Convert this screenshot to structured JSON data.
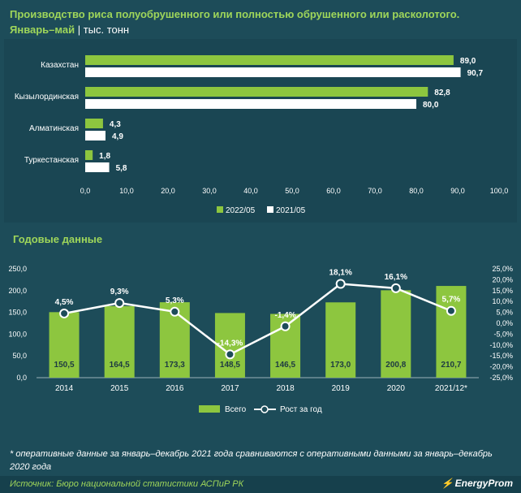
{
  "title": {
    "line1": "Производство риса полуобрушенного или полностью обрушенного или расколотого.",
    "line2": "Январь–май",
    "sep": " | ",
    "unit": "тыс. тонн"
  },
  "section2_title": "Годовые данные",
  "footnote": "* оперативные данные за январь–декабрь 2021 года сравниваются с оперативными данными за январь–декабрь 2020 года",
  "source": "Источник: Бюро национальной статистики АСПиР РК",
  "logo": "EnergyProm",
  "colors": {
    "green": "#8dc63f",
    "white": "#ffffff",
    "text": "#ffffff",
    "title": "#9fd65a"
  },
  "chart_data": [
    {
      "type": "bar",
      "orientation": "horizontal",
      "categories": [
        "Казахстан",
        "Кызылординская",
        "Алматинская",
        "Туркестанская"
      ],
      "series": [
        {
          "name": "2022/05",
          "values": [
            89.0,
            82.8,
            4.3,
            1.8
          ],
          "labels": [
            "89,0",
            "82,8",
            "4,3",
            "1,8"
          ],
          "color": "#8dc63f"
        },
        {
          "name": "2021/05",
          "values": [
            90.7,
            80.0,
            4.9,
            5.8
          ],
          "labels": [
            "90,7",
            "80,0",
            "4,9",
            "5,8"
          ],
          "color": "#ffffff"
        }
      ],
      "xlim": [
        0,
        100
      ],
      "xticks": [
        "0,0",
        "10,0",
        "20,0",
        "30,0",
        "40,0",
        "50,0",
        "60,0",
        "70,0",
        "80,0",
        "90,0",
        "100,0"
      ],
      "legend": "bottom"
    },
    {
      "type": "bar+line",
      "categories": [
        "2014",
        "2015",
        "2016",
        "2017",
        "2018",
        "2019",
        "2020",
        "2021/12*"
      ],
      "series": [
        {
          "name": "Всего",
          "type": "bar",
          "axis": "left",
          "values": [
            150.5,
            164.5,
            173.3,
            148.5,
            146.5,
            173.0,
            200.8,
            210.7
          ],
          "labels": [
            "150,5",
            "164,5",
            "173,3",
            "148,5",
            "146,5",
            "173,0",
            "200,8",
            "210,7"
          ]
        },
        {
          "name": "Рост за год",
          "type": "line",
          "axis": "right",
          "values": [
            4.5,
            9.3,
            5.3,
            -14.3,
            -1.4,
            18.1,
            16.1,
            5.7
          ],
          "labels": [
            "4,5%",
            "9,3%",
            "5,3%",
            "-14,3%",
            "-1,4%",
            "18,1%",
            "16,1%",
            "5,7%"
          ]
        }
      ],
      "ylim_left": [
        0,
        250
      ],
      "yticks_left": [
        "250,0",
        "200,0",
        "150,0",
        "100,0",
        "50,0",
        "0,0"
      ],
      "ylim_right": [
        -25,
        25
      ],
      "yticks_right": [
        "25,0%",
        "20,0%",
        "15,0%",
        "10,0%",
        "5,0%",
        "0,0%",
        "-5,0%",
        "-10,0%",
        "-15,0%",
        "-20,0%",
        "-25,0%"
      ],
      "legend": "bottom"
    }
  ]
}
